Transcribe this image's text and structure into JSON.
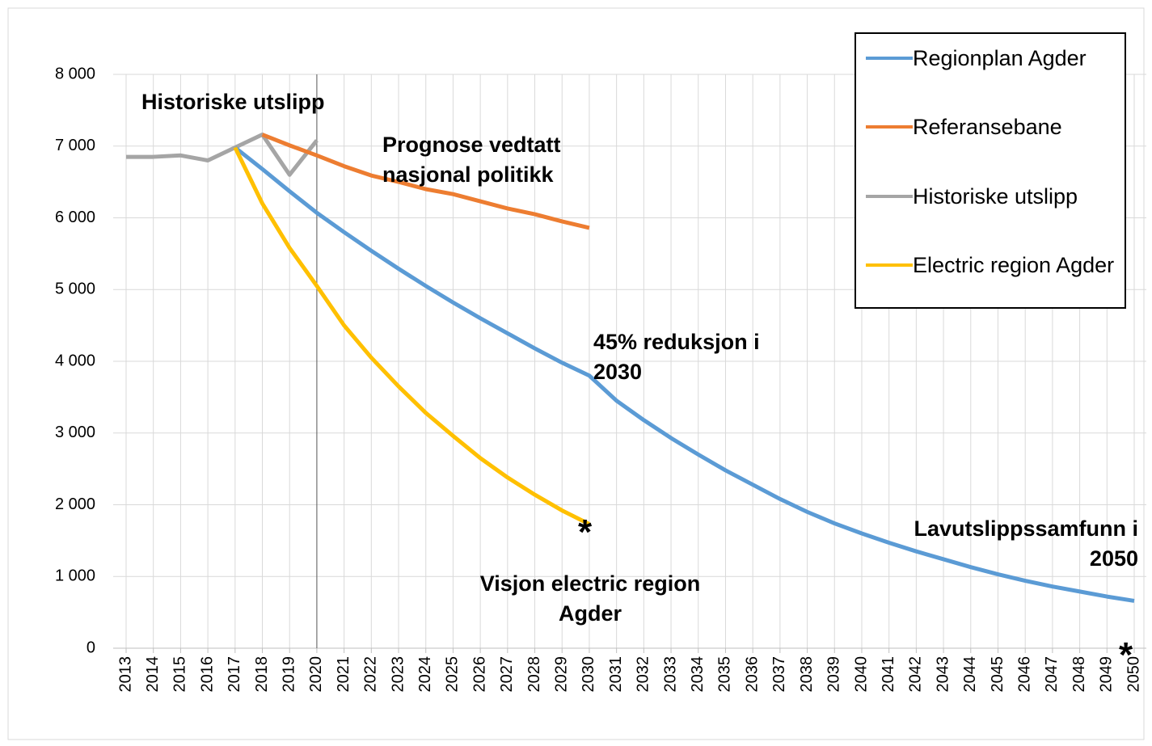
{
  "chart_data": {
    "type": "line",
    "categories": [
      "2013",
      "2014",
      "2015",
      "2016",
      "2017",
      "2018",
      "2019",
      "2020",
      "2021",
      "2022",
      "2023",
      "2024",
      "2025",
      "2026",
      "2027",
      "2028",
      "2029",
      "2030",
      "2031",
      "2032",
      "2033",
      "2034",
      "2035",
      "2036",
      "2037",
      "2038",
      "2039",
      "2040",
      "2041",
      "2042",
      "2043",
      "2044",
      "2045",
      "2046",
      "2047",
      "2048",
      "2049",
      "2050"
    ],
    "series": [
      {
        "name": "Regionplan Agder",
        "color": "#5b9bd5",
        "values": [
          null,
          null,
          null,
          null,
          6980,
          6680,
          6370,
          6070,
          5800,
          5540,
          5290,
          5050,
          4820,
          4600,
          4390,
          4180,
          3980,
          3800,
          3450,
          3180,
          2930,
          2700,
          2480,
          2280,
          2080,
          1900,
          1740,
          1600,
          1470,
          1350,
          1240,
          1130,
          1030,
          940,
          860,
          790,
          720,
          660
        ]
      },
      {
        "name": "Referansebane",
        "color": "#ed7d31",
        "values": [
          null,
          null,
          null,
          null,
          null,
          7160,
          7010,
          6870,
          6720,
          6590,
          6500,
          6400,
          6330,
          6230,
          6130,
          6050,
          5950,
          5860,
          null,
          null,
          null,
          null,
          null,
          null,
          null,
          null,
          null,
          null,
          null,
          null,
          null,
          null,
          null,
          null,
          null,
          null,
          null,
          null
        ]
      },
      {
        "name": "Historiske utslipp",
        "color": "#a5a5a5",
        "values": [
          6850,
          6850,
          6870,
          6800,
          6980,
          7160,
          6600,
          7080,
          null,
          null,
          null,
          null,
          null,
          null,
          null,
          null,
          null,
          null,
          null,
          null,
          null,
          null,
          null,
          null,
          null,
          null,
          null,
          null,
          null,
          null,
          null,
          null,
          null,
          null,
          null,
          null,
          null,
          null
        ]
      },
      {
        "name": "Electric region Agder",
        "color": "#ffc000",
        "values": [
          null,
          null,
          null,
          null,
          6980,
          6200,
          5580,
          5050,
          4500,
          4050,
          3650,
          3280,
          2960,
          2650,
          2380,
          2140,
          1920,
          1730,
          null,
          null,
          null,
          null,
          null,
          null,
          null,
          null,
          null,
          null,
          null,
          null,
          null,
          null,
          null,
          null,
          null,
          null,
          null,
          null
        ]
      }
    ],
    "ylim": [
      0,
      8000
    ],
    "yticks": [
      {
        "value": 0,
        "label": "0"
      },
      {
        "value": 1000,
        "label": "1 000"
      },
      {
        "value": 2000,
        "label": "2 000"
      },
      {
        "value": 3000,
        "label": "3 000"
      },
      {
        "value": 4000,
        "label": "4 000"
      },
      {
        "value": 5000,
        "label": "5 000"
      },
      {
        "value": 6000,
        "label": "6 000"
      },
      {
        "value": 7000,
        "label": "7 000"
      },
      {
        "value": 8000,
        "label": "8 000"
      }
    ],
    "grid": true,
    "vline": "2020",
    "legend": "upper right",
    "annotations": [
      "Historiske utslipp",
      "Prognose vedtatt nasjonal politikk",
      "45% reduksjon i 2030",
      "Lavutslippssamfunn i 2050",
      "Visjon electric region Agder",
      "*",
      "*"
    ]
  }
}
